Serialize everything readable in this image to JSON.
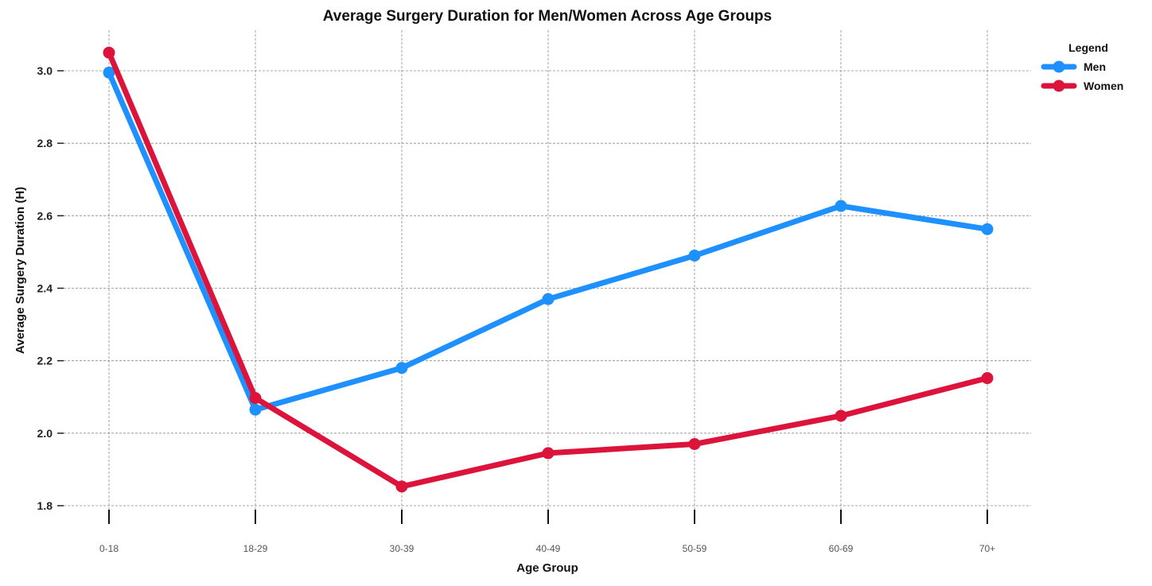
{
  "chart_data": {
    "type": "line",
    "title": "Average Surgery Duration for Men/Women Across Age Groups",
    "xlabel": "Age Group",
    "ylabel": "Average Surgery Duration (H)",
    "categories": [
      "0-18",
      "18-29",
      "30-39",
      "40-49",
      "50-59",
      "60-69",
      "70+"
    ],
    "ylim": [
      1.77,
      3.12
    ],
    "yticks": [
      1.8,
      2.0,
      2.2,
      2.4,
      2.6,
      2.8,
      3.0
    ],
    "ytick_labels": [
      "1.8",
      "2.0",
      "2.2",
      "2.4",
      "2.6",
      "2.8",
      "3.0"
    ],
    "grid": true,
    "legend": {
      "title": "Legend",
      "placement": "top-right, outside"
    },
    "series": [
      {
        "name": "Men",
        "color": "#1e90ff",
        "values": [
          2.995,
          2.065,
          2.18,
          2.37,
          2.49,
          2.627,
          2.563
        ]
      },
      {
        "name": "Women",
        "color": "#dc143c",
        "values": [
          3.05,
          2.097,
          1.853,
          1.945,
          1.97,
          2.048,
          2.152
        ]
      }
    ]
  }
}
